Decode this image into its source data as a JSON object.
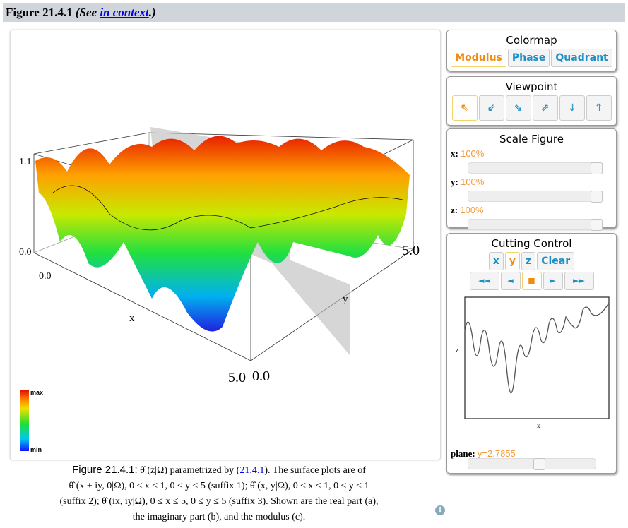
{
  "header": {
    "title": "Figure 21.4.1",
    "see": "(See ",
    "link": "in context",
    "end": ".)"
  },
  "plot": {
    "z_max_label": "1.1",
    "z_min_label": "0.0",
    "x_start": "0.0",
    "x_end": "5.0",
    "y_start": "0.0",
    "y_end": "5.0",
    "x_axis": "x",
    "y_axis": "y",
    "colorbar_max": "max",
    "colorbar_min": "min"
  },
  "colormap": {
    "title": "Colormap",
    "options": [
      "Modulus",
      "Phase",
      "Quadrant"
    ],
    "selected": "Modulus"
  },
  "viewpoint": {
    "title": "Viewpoint",
    "buttons": [
      "⇖",
      "⇙",
      "⇘",
      "⇗",
      "⇓",
      "⇑"
    ],
    "selected_index": 0
  },
  "scale": {
    "title": "Scale Figure",
    "x_label": "x:",
    "x_value": "100%",
    "y_label": "y:",
    "y_value": "100%",
    "z_label": "z:",
    "z_value": "100%",
    "x_pct": 100,
    "y_pct": 100,
    "z_pct": 100
  },
  "cutting": {
    "title": "Cutting Control",
    "axes": [
      "x",
      "y",
      "z"
    ],
    "selected_axis": "y",
    "clear": "Clear",
    "nav": [
      "◄◄",
      "◄",
      "■",
      "►",
      "►►"
    ],
    "plot_ylabel": "z",
    "plot_xlabel": "x",
    "plane_label": "plane:",
    "plane_value": "y=2.7855",
    "plane_fraction": 0.557
  },
  "caption": {
    "fig": "Figure 21.4.1:",
    "l1a": " θ̂ (z|Ω) parametrized by (",
    "link": "21.4.1",
    "l1b": "). The surface plots are of",
    "l2": "θ̂ (x + iy, 0|Ω), 0 ≤ x ≤ 1, 0 ≤ y ≤ 5 (suffix 1); θ̂ (x, y|Ω), 0 ≤ x ≤ 1, 0 ≤ y ≤ 1",
    "l3": "(suffix 2); θ̂ (ix, iy|Ω), 0 ≤ x ≤ 5, 0 ≤ y ≤ 5 (suffix 3). Shown are the real part (a),",
    "l4": "the imaginary part (b), and the modulus (c)."
  },
  "colors": {
    "accent": "#f08c10",
    "button_text": "#1e8fc6",
    "link": "#0000ee"
  }
}
